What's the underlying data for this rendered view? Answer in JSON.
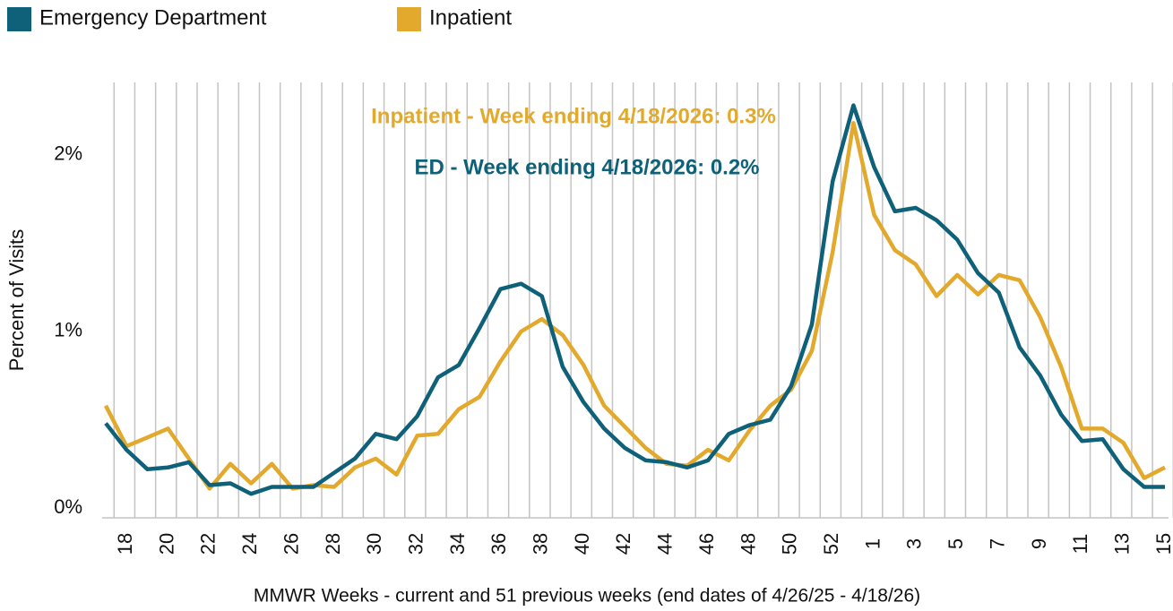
{
  "chart_data": {
    "type": "line",
    "x_label": "MMWR Weeks - current and 51 previous weeks (end dates of 4/26/25 - 4/18/26)",
    "y_label": "Percent of Visits",
    "categories": [
      null,
      "18",
      null,
      "20",
      null,
      "22",
      null,
      "24",
      null,
      "26",
      null,
      "28",
      null,
      "30",
      null,
      "32",
      null,
      "34",
      null,
      "36",
      null,
      "38",
      null,
      "40",
      null,
      "42",
      null,
      "44",
      null,
      "46",
      null,
      "48",
      null,
      "50",
      null,
      "52",
      null,
      "1",
      null,
      "3",
      null,
      "5",
      null,
      "7",
      null,
      "9",
      null,
      "11",
      null,
      "13",
      null,
      "15"
    ],
    "series": [
      {
        "name": "Emergency Department",
        "color": "#0e6178",
        "values": [
          0.52,
          0.37,
          0.26,
          0.27,
          0.3,
          0.17,
          0.18,
          0.12,
          0.16,
          0.16,
          0.16,
          0.24,
          0.32,
          0.46,
          0.43,
          0.56,
          0.78,
          0.85,
          1.06,
          1.28,
          1.31,
          1.24,
          0.84,
          0.64,
          0.49,
          0.38,
          0.31,
          0.3,
          0.27,
          0.31,
          0.46,
          0.51,
          0.54,
          0.73,
          1.08,
          1.89,
          2.32,
          1.97,
          1.72,
          1.74,
          1.67,
          1.56,
          1.37,
          1.26,
          0.95,
          0.79,
          0.57,
          0.42,
          0.43,
          0.26,
          0.16,
          0.16
        ]
      },
      {
        "name": "Inpatient",
        "color": "#e3a92c",
        "values": [
          0.62,
          0.39,
          0.44,
          0.49,
          0.32,
          0.15,
          0.29,
          0.18,
          0.29,
          0.15,
          0.17,
          0.16,
          0.27,
          0.32,
          0.23,
          0.45,
          0.46,
          0.6,
          0.67,
          0.87,
          1.04,
          1.11,
          1.02,
          0.85,
          0.62,
          0.5,
          0.38,
          0.29,
          0.28,
          0.37,
          0.31,
          0.48,
          0.62,
          0.71,
          0.93,
          1.49,
          2.22,
          1.7,
          1.5,
          1.42,
          1.24,
          1.36,
          1.25,
          1.36,
          1.33,
          1.12,
          0.84,
          0.49,
          0.49,
          0.41,
          0.21,
          0.27
        ]
      }
    ],
    "annotations": [
      {
        "text": "Inpatient - Week ending 4/18/2026: 0.3%",
        "color": "#e3a92c"
      },
      {
        "text": "ED - Week ending 4/18/2026: 0.2%",
        "color": "#0e6178"
      }
    ],
    "ylim": [
      0,
      2.45
    ],
    "yticks": [
      {
        "value": 0,
        "label": "0%"
      },
      {
        "value": 1,
        "label": "1%"
      },
      {
        "value": 2,
        "label": "2%"
      }
    ],
    "grid": true,
    "legend": "top"
  }
}
